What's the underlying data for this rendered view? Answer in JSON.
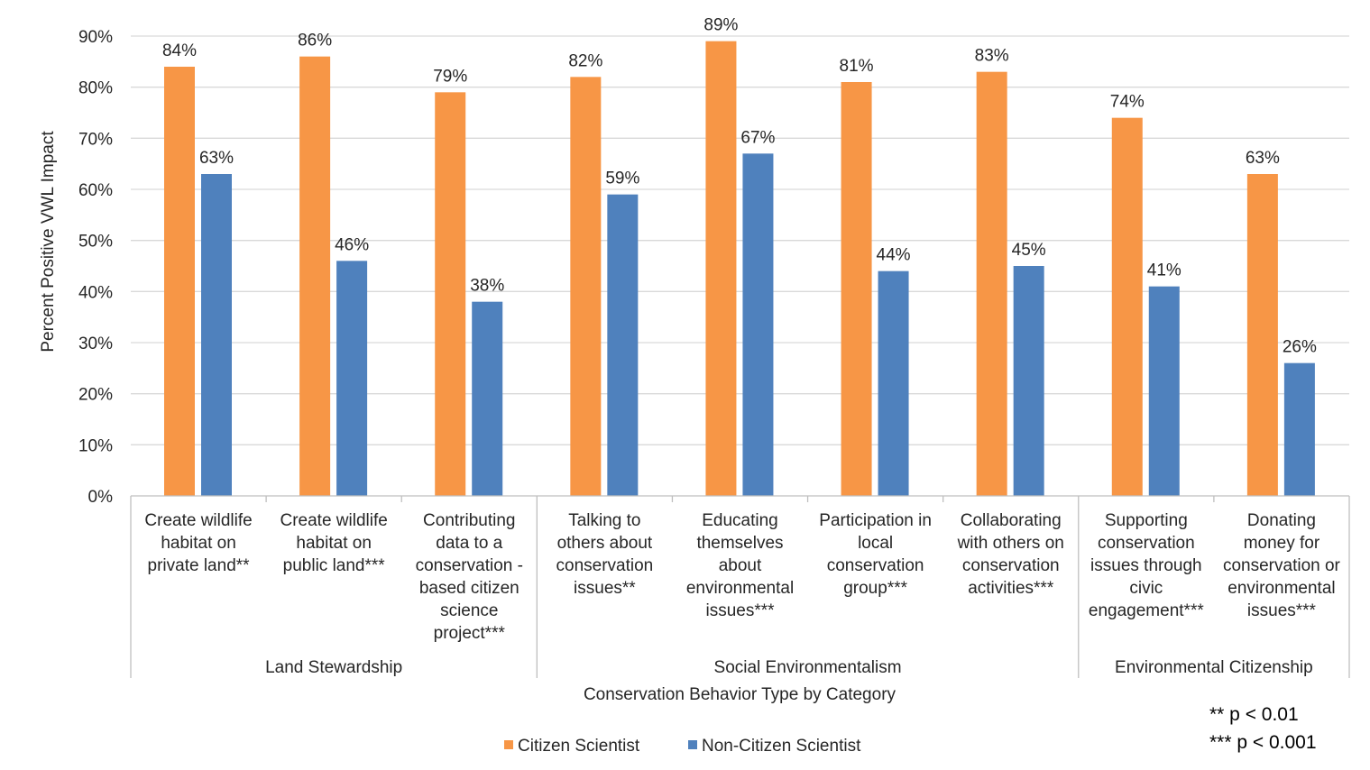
{
  "chart_data": {
    "type": "bar",
    "xlabel": "Conservation Behavior Type by Category",
    "ylabel": "Percent Positive VWL Impact",
    "ylim": [
      0,
      90
    ],
    "ytick_step": 10,
    "ytick_labels": [
      "0%",
      "10%",
      "20%",
      "30%",
      "40%",
      "50%",
      "60%",
      "70%",
      "80%",
      "90%"
    ],
    "grid": true,
    "legend_position": "bottom-center",
    "categories": [
      [
        "Create wildlife",
        "habitat on",
        "private land**"
      ],
      [
        "Create wildlife",
        "habitat on",
        "public land***"
      ],
      [
        "Contributing",
        "data to a",
        "conservation -",
        "based citizen",
        "science",
        "project***"
      ],
      [
        "Talking to",
        "others about",
        "conservation",
        "issues**"
      ],
      [
        "Educating",
        "themselves",
        "about",
        "environmental",
        "issues***"
      ],
      [
        "Participation in",
        "local",
        "conservation",
        "group***"
      ],
      [
        "Collaborating",
        "with others on",
        "conservation",
        "activities***"
      ],
      [
        "Supporting",
        "conservation",
        "issues through",
        "civic",
        "engagement***"
      ],
      [
        "Donating",
        "money for",
        "conservation or",
        "environmental",
        "issues***"
      ]
    ],
    "groups": [
      {
        "label": "Land Stewardship",
        "count": 3
      },
      {
        "label": "Social Environmentalism",
        "count": 4
      },
      {
        "label": "Environmental Citizenship",
        "count": 2
      }
    ],
    "series": [
      {
        "name": "Citizen Scientist",
        "color": "#F79646",
        "values": [
          84,
          86,
          79,
          82,
          89,
          81,
          83,
          74,
          63
        ]
      },
      {
        "name": "Non-Citizen Scientist",
        "color": "#4F81BD",
        "values": [
          63,
          46,
          38,
          59,
          67,
          44,
          45,
          41,
          26
        ]
      }
    ],
    "value_suffix": "%",
    "notes": [
      "** p < 0.01",
      "*** p < 0.001"
    ]
  },
  "colors": {
    "grid": "#D9D9D9",
    "axis": "#BFBFBF",
    "text": "#262626"
  }
}
